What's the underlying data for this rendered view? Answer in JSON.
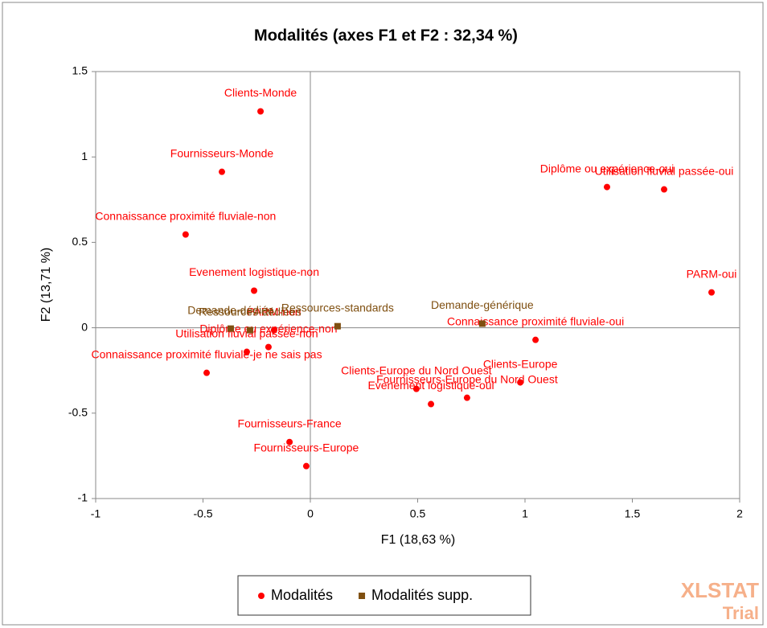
{
  "chart_data": {
    "type": "scatter",
    "title": "Modalités (axes F1 et F2 : 32,34 %)",
    "x_label": "F1 (18,63 %)",
    "y_label": "F2 (13,71 %)",
    "xlim": [
      -1,
      2
    ],
    "ylim": [
      -1,
      1.5
    ],
    "xticks": [
      -1,
      -0.5,
      0,
      0.5,
      1,
      1.5,
      2
    ],
    "yticks": [
      -1,
      -0.5,
      0,
      0.5,
      1,
      1.5
    ],
    "legend": "bottom",
    "watermark": [
      "XLSTAT",
      "Trial"
    ],
    "series": [
      {
        "name": "Modalités",
        "color": "#ff0000",
        "marker": "circle",
        "labels": [
          "Clients-Monde",
          "Fournisseurs-Monde",
          "Connaissance proximité fluviale-non",
          "Evenement logistique-non",
          "PARM-non",
          "Diplôme ou expérience-non",
          "Utilisation fluvial passée-non",
          "Connaissance proximité fluviale-je ne sais pas",
          "Fournisseurs-France",
          "Fournisseurs-Europe",
          "Clients-Europe du Nord Ouest",
          "Evenement logistique-oui",
          "Fournisseurs-Europe du Nord Ouest",
          "Clients-Europe",
          "Connaissance proximité fluviale-oui",
          "Diplôme ou expérience-oui",
          "Utilisation fluvial passée-oui",
          "PARM-oui"
        ],
        "x": [
          -0.232,
          -0.412,
          -0.581,
          -0.262,
          -0.169,
          -0.195,
          -0.296,
          -0.483,
          -0.097,
          -0.019,
          0.494,
          0.562,
          0.73,
          0.978,
          1.049,
          1.382,
          1.648,
          1.869
        ],
        "y": [
          1.267,
          0.913,
          0.546,
          0.217,
          -0.014,
          -0.113,
          -0.141,
          -0.264,
          -0.669,
          -0.81,
          -0.358,
          -0.447,
          -0.41,
          -0.32,
          -0.071,
          0.824,
          0.81,
          0.207
        ]
      },
      {
        "name": "Modalités supp.",
        "color": "#7f4f10",
        "marker": "square",
        "labels": [
          "Demande-dédiée",
          "Ressources-dédiées",
          "Ressources-standards",
          "Demande-générique"
        ],
        "x": [
          -0.371,
          -0.281,
          0.127,
          0.801
        ],
        "y": [
          -0.005,
          -0.014,
          0.009,
          0.024
        ]
      }
    ]
  }
}
